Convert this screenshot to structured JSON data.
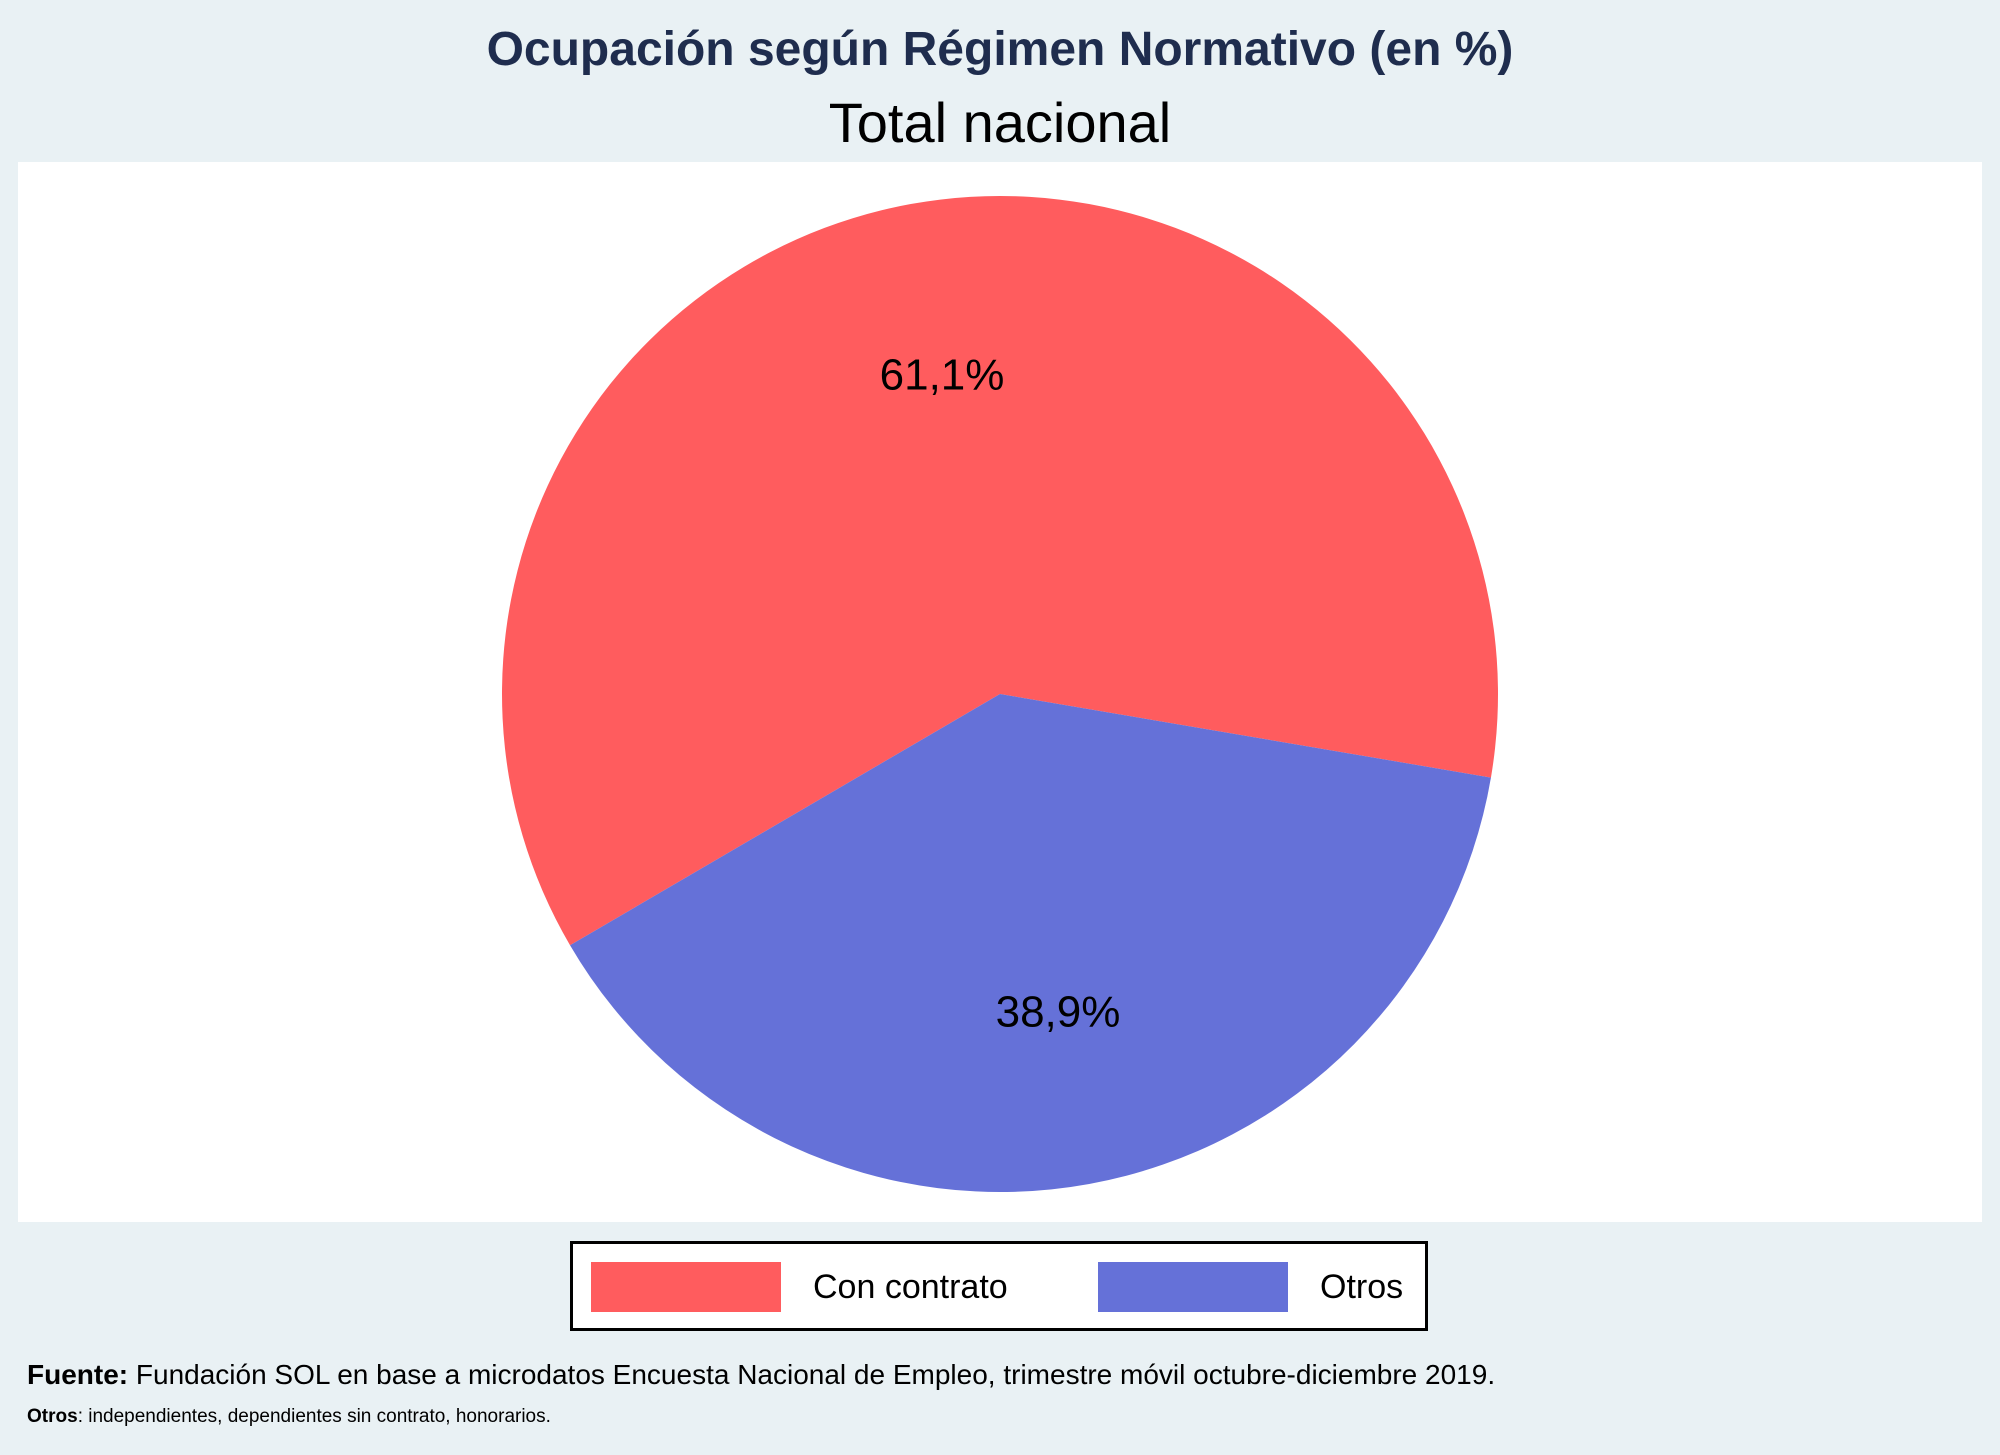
{
  "header": {
    "title": "Ocupación según Régimen Normativo (en %)",
    "subtitle": "Total nacional"
  },
  "chart_data": {
    "type": "pie",
    "title": "Ocupación según Régimen Normativo (en %)",
    "subtitle": "Total nacional",
    "categories": [
      "Con contrato",
      "Otros"
    ],
    "values": [
      61.1,
      38.9
    ],
    "data_labels": [
      "61,1%",
      "38,9%"
    ],
    "colors": [
      "#ff5c5e",
      "#6571d8"
    ],
    "legend_position": "bottom"
  },
  "legend": {
    "items": [
      {
        "label": "Con contrato",
        "color": "#ff5c5e"
      },
      {
        "label": "Otros",
        "color": "#6571d8"
      }
    ]
  },
  "footer": {
    "source_label": "Fuente:",
    "source_text": " Fundación SOL en base a microdatos Encuesta Nacional de Empleo, trimestre móvil octubre-diciembre 2019.",
    "note_label": "Otros",
    "note_text": ": independientes, dependientes sin contrato, honorarios."
  }
}
